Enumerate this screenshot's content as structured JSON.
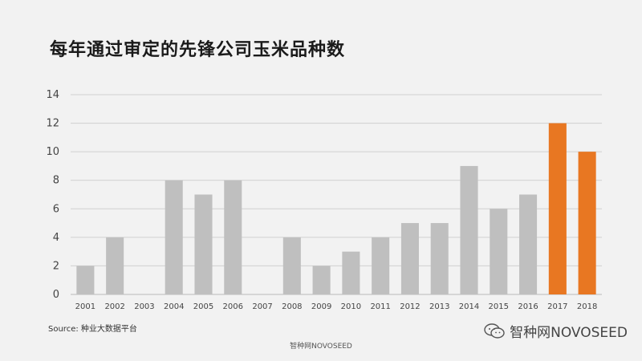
{
  "chart_data": {
    "type": "bar",
    "title": "每年通过审定的先锋公司玉米品种数",
    "categories": [
      "2001",
      "2002",
      "2003",
      "2004",
      "2005",
      "2006",
      "2007",
      "2008",
      "2009",
      "2010",
      "2011",
      "2012",
      "2013",
      "2014",
      "2015",
      "2016",
      "2017",
      "2018"
    ],
    "values": [
      2,
      4,
      0,
      8,
      7,
      8,
      0,
      4,
      2,
      3,
      4,
      5,
      5,
      9,
      6,
      7,
      12,
      10
    ],
    "highlight_categories": [
      "2017",
      "2018"
    ],
    "ylim": [
      0,
      14
    ],
    "yticks": [
      0,
      2,
      4,
      6,
      8,
      10,
      12,
      14
    ],
    "grid": true,
    "xlabel": "",
    "ylabel": "",
    "colors": {
      "bar": "#bfbfbf",
      "highlight": "#e87722",
      "grid": "#d0d0d0",
      "axis_text": "#444444"
    }
  },
  "source": "Source: 种业大数据平台",
  "watermark_center": "智种网NOVOSEED",
  "watermark_right": "智种网NOVOSEED",
  "icons": {
    "wechat": "wechat-icon"
  }
}
